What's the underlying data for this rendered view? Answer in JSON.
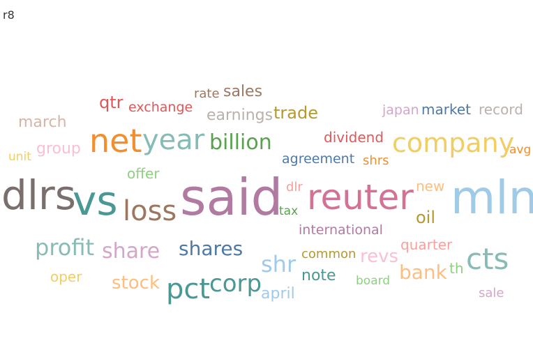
{
  "title": "r8",
  "chart_data": {
    "type": "wordcloud",
    "words": [
      {
        "text": "said",
        "weight": 100,
        "color": "#b07aa1"
      },
      {
        "text": "mln",
        "weight": 94,
        "color": "#a0cbe8"
      },
      {
        "text": "dlrs",
        "weight": 88,
        "color": "#79706e"
      },
      {
        "text": "vs",
        "weight": 82,
        "color": "#499894"
      },
      {
        "text": "reuter",
        "weight": 78,
        "color": "#d37295"
      },
      {
        "text": "net",
        "weight": 72,
        "color": "#f28e2b"
      },
      {
        "text": "loss",
        "weight": 64,
        "color": "#9d7660"
      },
      {
        "text": "year",
        "weight": 62,
        "color": "#86bcb6"
      },
      {
        "text": "cts",
        "weight": 58,
        "color": "#86bcb6"
      },
      {
        "text": "company",
        "weight": 56,
        "color": "#f1ce63"
      },
      {
        "text": "pct",
        "weight": 55,
        "color": "#499894"
      },
      {
        "text": "corp",
        "weight": 48,
        "color": "#499894"
      },
      {
        "text": "shr",
        "weight": 46,
        "color": "#a0cbe8"
      },
      {
        "text": "profit",
        "weight": 45,
        "color": "#86bcb6"
      },
      {
        "text": "share",
        "weight": 44,
        "color": "#d4a6c8"
      },
      {
        "text": "billion",
        "weight": 44,
        "color": "#59a14f"
      },
      {
        "text": "shares",
        "weight": 42,
        "color": "#4e79a7"
      },
      {
        "text": "bank",
        "weight": 40,
        "color": "#ffbe7d"
      },
      {
        "text": "stock",
        "weight": 38,
        "color": "#ffbe7d"
      },
      {
        "text": "revs",
        "weight": 36,
        "color": "#fabfd2"
      },
      {
        "text": "trade",
        "weight": 35,
        "color": "#b6992d"
      },
      {
        "text": "oil",
        "weight": 34,
        "color": "#b6992d"
      },
      {
        "text": "group",
        "weight": 33,
        "color": "#fabfd2"
      },
      {
        "text": "earnings",
        "weight": 32,
        "color": "#bab0ac"
      },
      {
        "text": "qtr",
        "weight": 32,
        "color": "#e15759"
      },
      {
        "text": "note",
        "weight": 31,
        "color": "#499894"
      },
      {
        "text": "sales",
        "weight": 31,
        "color": "#9d7660"
      },
      {
        "text": "march",
        "weight": 31,
        "color": "#d7b5a6"
      },
      {
        "text": "april",
        "weight": 30,
        "color": "#a0cbe8"
      },
      {
        "text": "quarter",
        "weight": 29,
        "color": "#ff9d9a"
      },
      {
        "text": "market",
        "weight": 29,
        "color": "#4e79a7"
      },
      {
        "text": "record",
        "weight": 29,
        "color": "#bab0ac"
      },
      {
        "text": "offer",
        "weight": 28,
        "color": "#8cd17d"
      },
      {
        "text": "dividend",
        "weight": 28,
        "color": "#e15759"
      },
      {
        "text": "new",
        "weight": 27,
        "color": "#ffbe7d"
      },
      {
        "text": "exchange",
        "weight": 26,
        "color": "#e15759"
      },
      {
        "text": "international",
        "weight": 26,
        "color": "#b07aa1"
      },
      {
        "text": "agreement",
        "weight": 25,
        "color": "#4e79a7"
      },
      {
        "text": "japan",
        "weight": 25,
        "color": "#d4a6c8"
      },
      {
        "text": "common",
        "weight": 25,
        "color": "#b6992d"
      },
      {
        "text": "oper",
        "weight": 25,
        "color": "#f1ce63"
      },
      {
        "text": "dlr",
        "weight": 24,
        "color": "#ff9d9a"
      },
      {
        "text": "th",
        "weight": 24,
        "color": "#8cd17d"
      },
      {
        "text": "rate",
        "weight": 23,
        "color": "#9d7660"
      },
      {
        "text": "shrs",
        "weight": 23,
        "color": "#f28e2b"
      },
      {
        "text": "sale",
        "weight": 23,
        "color": "#d4a6c8"
      },
      {
        "text": "board",
        "weight": 22,
        "color": "#8cd17d"
      },
      {
        "text": "avg",
        "weight": 22,
        "color": "#f28e2b"
      },
      {
        "text": "unit",
        "weight": 22,
        "color": "#f1ce63"
      },
      {
        "text": "tax",
        "weight": 22,
        "color": "#59a14f"
      }
    ]
  }
}
